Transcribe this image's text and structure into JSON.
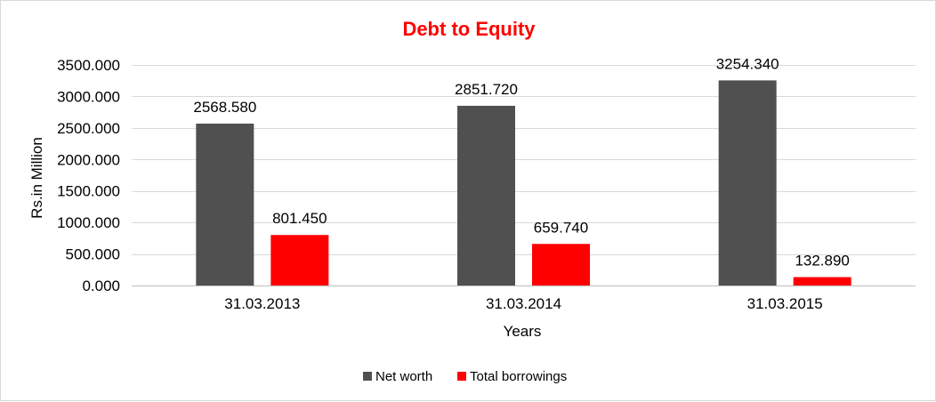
{
  "chart_data": {
    "type": "bar",
    "title": "Debt to Equity",
    "xlabel": "Years",
    "ylabel": "Rs.in Million",
    "categories": [
      "31.03.2013",
      "31.03.2014",
      "31.03.2015"
    ],
    "series": [
      {
        "name": "Net worth",
        "color": "#505050",
        "values": [
          2568.58,
          2851.72,
          3254.34
        ],
        "labels": [
          "2568.580",
          "2851.720",
          "3254.340"
        ]
      },
      {
        "name": "Total borrowings",
        "color": "#ff0000",
        "values": [
          801.45,
          659.74,
          132.89
        ],
        "labels": [
          "801.450",
          "659.740",
          "132.890"
        ]
      }
    ],
    "ylim": [
      0,
      3500
    ],
    "yticks": [
      0,
      500,
      1000,
      1500,
      2000,
      2500,
      3000,
      3500
    ],
    "ytick_labels": [
      "0.000",
      "500.000",
      "1000.000",
      "1500.000",
      "2000.000",
      "2500.000",
      "3000.000",
      "3500.000"
    ],
    "title_color": "#ff0000",
    "grid": true,
    "legend_position": "bottom"
  }
}
